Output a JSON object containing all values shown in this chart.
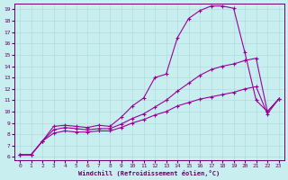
{
  "xlabel": "Windchill (Refroidissement éolien,°C)",
  "bg_color": "#c8eef0",
  "line_color": "#990099",
  "grid_color": "#b0dde0",
  "axis_color": "#660066",
  "xlim": [
    -0.5,
    23.5
  ],
  "ylim": [
    5.7,
    19.5
  ],
  "xticks": [
    0,
    1,
    2,
    3,
    4,
    5,
    6,
    7,
    8,
    9,
    10,
    11,
    12,
    13,
    14,
    15,
    16,
    17,
    18,
    19,
    20,
    21,
    22,
    23
  ],
  "yticks": [
    6,
    7,
    8,
    9,
    10,
    11,
    12,
    13,
    14,
    15,
    16,
    17,
    18,
    19
  ],
  "curve1_x": [
    0,
    1,
    2,
    3,
    4,
    5,
    6,
    7,
    8,
    9,
    10,
    11,
    12,
    13,
    14,
    15,
    16,
    17,
    18,
    19,
    20,
    21,
    22,
    23
  ],
  "curve1_y": [
    6.2,
    6.2,
    7.4,
    8.7,
    8.8,
    8.7,
    8.6,
    8.8,
    8.7,
    9.5,
    10.5,
    11.2,
    13.0,
    13.3,
    16.5,
    18.2,
    18.9,
    19.3,
    19.3,
    19.1,
    15.2,
    11.0,
    10.0,
    11.1
  ],
  "curve2_x": [
    0,
    1,
    2,
    3,
    4,
    5,
    6,
    7,
    8,
    9,
    10,
    11,
    12,
    13,
    14,
    15,
    16,
    17,
    18,
    19,
    20,
    21,
    22,
    23
  ],
  "curve2_y": [
    6.2,
    6.2,
    7.4,
    8.4,
    8.6,
    8.5,
    8.4,
    8.5,
    8.5,
    8.9,
    9.4,
    9.8,
    10.4,
    11.0,
    11.8,
    12.5,
    13.2,
    13.7,
    14.0,
    14.2,
    14.5,
    14.7,
    10.0,
    11.1
  ],
  "curve3_x": [
    0,
    1,
    2,
    3,
    4,
    5,
    6,
    7,
    8,
    9,
    10,
    11,
    12,
    13,
    14,
    15,
    16,
    17,
    18,
    19,
    20,
    21,
    22,
    23
  ],
  "curve3_y": [
    6.2,
    6.2,
    7.4,
    8.1,
    8.3,
    8.2,
    8.2,
    8.3,
    8.3,
    8.6,
    9.0,
    9.3,
    9.7,
    10.0,
    10.5,
    10.8,
    11.1,
    11.3,
    11.5,
    11.7,
    12.0,
    12.2,
    9.8,
    11.1
  ]
}
